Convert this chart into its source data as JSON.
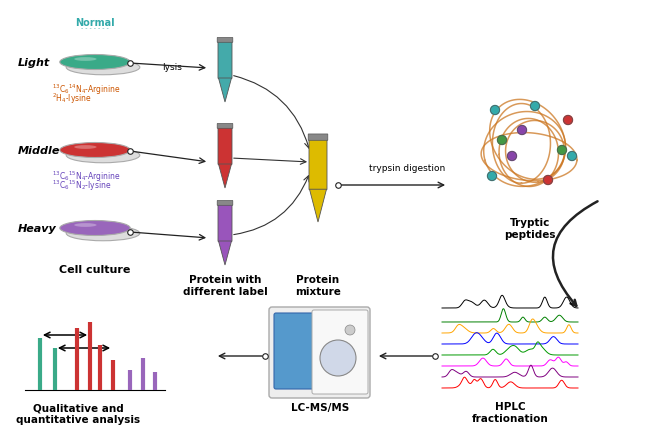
{
  "figsize": [
    6.49,
    4.36
  ],
  "dpi": 100,
  "labels": {
    "normal": "Normal",
    "light": "Light",
    "middle": "Middle",
    "heavy": "Heavy",
    "cell_culture": "Cell culture",
    "protein_label": "Protein with\ndifferent label",
    "protein_mixture": "Protein\nmixture",
    "tryptic": "Tryptic\npeptides",
    "lysis": "lysis",
    "trypsin": "trypsin digestion",
    "hplc": "HPLC\nfractionation",
    "lcms": "LC-MS/MS",
    "qual": "Qualitative and\nquantitative analysis"
  },
  "subscript_labels": {
    "light_label1": "$^{13}$C$_6$$^{14}$N$_4$-Arginine",
    "light_label2": "$^{2}$H$_4$-lysine",
    "heavy_label1": "$^{13}$C$_6$$^{15}$N$_4$-Arginine",
    "heavy_label2": "$^{13}$C$_6$$^{15}$N$_2$-lysine"
  },
  "colors": {
    "teal": "#3aaa88",
    "red": "#cc3333",
    "purple": "#9966bb",
    "orange_text": "#cc5500",
    "purple_text": "#6644bb",
    "arrow": "#222222",
    "tube_teal": "#44aaaa",
    "tube_red": "#cc3333",
    "tube_purple": "#9955bb",
    "tube_yellow": "#ddbb00",
    "curve_color": "#cc7722",
    "normal_text": "#33aaaa",
    "bg": "#ffffff",
    "dot_teal": "#33aaaa",
    "dot_red": "#cc3333",
    "dot_purple": "#8844aa",
    "dot_green": "#449944"
  }
}
